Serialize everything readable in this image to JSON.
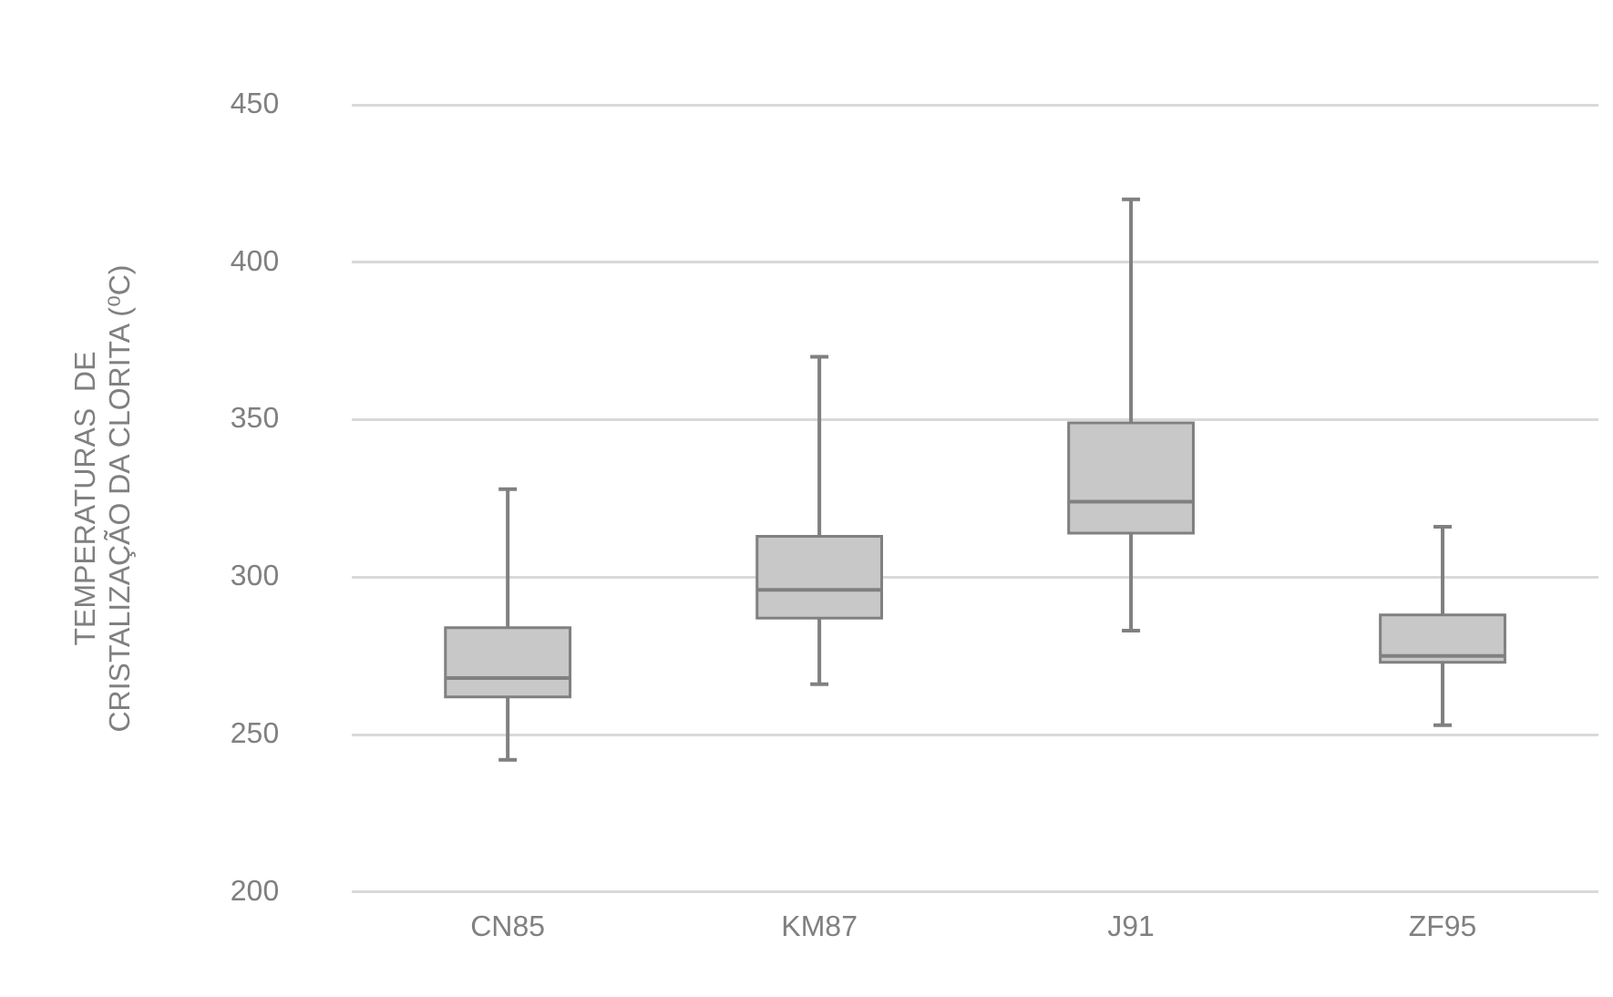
{
  "chart_data": {
    "type": "box",
    "ylabel": "TEMPERATURAS  DE\nCRISTALIZAÇÃO DA CLORITA (⁰C)",
    "categories": [
      "CN85",
      "KM87",
      "J91",
      "ZF95"
    ],
    "color": "#c8c8c8",
    "boxes": [
      {
        "low": 242,
        "q1": 262,
        "median": 268,
        "q3": 284,
        "high": 328
      },
      {
        "low": 266,
        "q1": 287,
        "median": 296,
        "q3": 313,
        "high": 370
      },
      {
        "low": 283,
        "q1": 314,
        "median": 324,
        "q3": 349,
        "high": 420
      },
      {
        "low": 253,
        "q1": 273,
        "median": 275,
        "q3": 288,
        "high": 316
      }
    ],
    "ylim": [
      200,
      450
    ],
    "yticks": [
      200,
      250,
      300,
      350,
      400,
      450
    ],
    "grid": "y",
    "legend": false
  }
}
